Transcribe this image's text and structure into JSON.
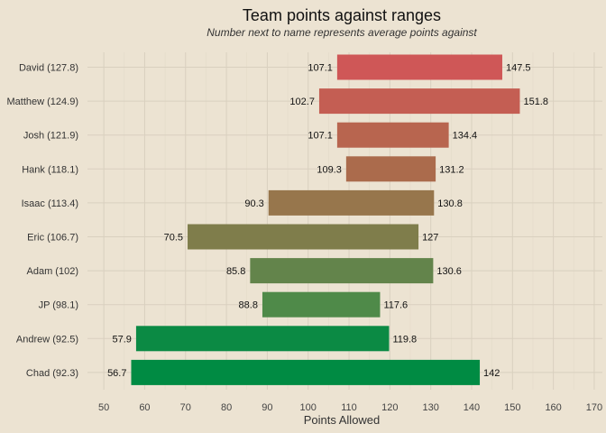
{
  "chart_data": {
    "type": "bar",
    "title": "Team points against ranges",
    "subtitle": "Number next to name represents average points against",
    "xlabel": "Points Allowed",
    "ylabel": "",
    "xlim": [
      46,
      172
    ],
    "xticks": [
      50,
      60,
      70,
      80,
      90,
      100,
      110,
      120,
      130,
      140,
      150,
      160,
      170
    ],
    "grid": true,
    "categories": [
      "David (127.8)",
      "Matthew (124.9)",
      "Josh (121.9)",
      "Hank (118.1)",
      "Isaac (113.4)",
      "Eric (106.7)",
      "Adam (102)",
      "JP (98.1)",
      "Andrew (92.5)",
      "Chad (92.3)"
    ],
    "series": [
      {
        "min": 107.1,
        "max": 147.5,
        "min_label": "107.1",
        "max_label": "147.5",
        "color": "#cf5757"
      },
      {
        "min": 102.7,
        "max": 151.8,
        "min_label": "102.7",
        "max_label": "151.8",
        "color": "#c45e53"
      },
      {
        "min": 107.1,
        "max": 134.4,
        "min_label": "107.1",
        "max_label": "134.4",
        "color": "#b8654f"
      },
      {
        "min": 109.3,
        "max": 131.2,
        "min_label": "109.3",
        "max_label": "131.2",
        "color": "#ab6b4c"
      },
      {
        "min": 90.3,
        "max": 130.8,
        "min_label": "90.3",
        "max_label": "130.8",
        "color": "#97764c"
      },
      {
        "min": 70.5,
        "max": 127,
        "min_label": "70.5",
        "max_label": "127",
        "color": "#7f7d4b"
      },
      {
        "min": 85.8,
        "max": 130.6,
        "min_label": "85.8",
        "max_label": "130.6",
        "color": "#63844b"
      },
      {
        "min": 88.8,
        "max": 117.6,
        "min_label": "88.8",
        "max_label": "117.6",
        "color": "#4f8a49"
      },
      {
        "min": 57.9,
        "max": 119.8,
        "min_label": "57.9",
        "max_label": "119.8",
        "color": "#0b8a44"
      },
      {
        "min": 56.7,
        "max": 142,
        "min_label": "56.7",
        "max_label": "142",
        "color": "#008b43"
      }
    ]
  }
}
